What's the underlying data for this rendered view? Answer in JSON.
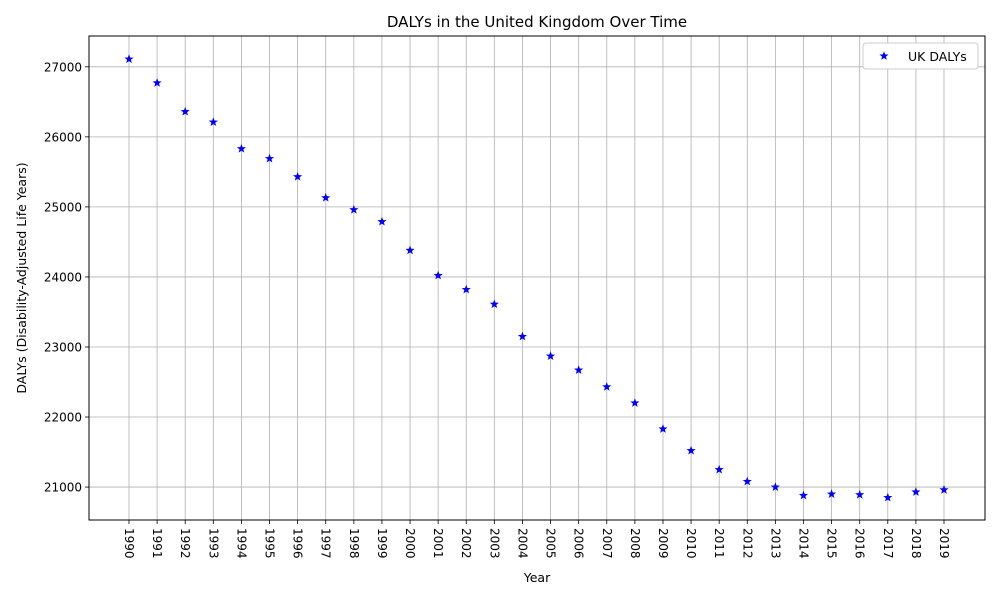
{
  "chart_data": {
    "type": "scatter",
    "title": "DALYs in the United Kingdom Over Time",
    "xlabel": "Year",
    "ylabel": "DALYs (Disability-Adjusted Life Years)",
    "x": [
      "1990",
      "1991",
      "1992",
      "1993",
      "1994",
      "1995",
      "1996",
      "1997",
      "1998",
      "1999",
      "2000",
      "2001",
      "2002",
      "2003",
      "2004",
      "2005",
      "2006",
      "2007",
      "2008",
      "2009",
      "2010",
      "2011",
      "2012",
      "2013",
      "2014",
      "2015",
      "2016",
      "2017",
      "2018",
      "2019"
    ],
    "series": [
      {
        "name": "UK DALYs",
        "color": "#0000ff",
        "marker": "star",
        "values": [
          27110,
          26770,
          26360,
          26210,
          25830,
          25690,
          25430,
          25130,
          24960,
          24790,
          24380,
          24020,
          23820,
          23610,
          23150,
          22870,
          22670,
          22430,
          22200,
          21830,
          21520,
          21250,
          21080,
          21000,
          20880,
          20900,
          20890,
          20850,
          20930,
          20960
        ]
      }
    ],
    "ylim": [
      20530,
      27440
    ],
    "yticks": [
      21000,
      22000,
      23000,
      24000,
      25000,
      26000,
      27000
    ],
    "grid": true,
    "legend_position": "top-right"
  }
}
